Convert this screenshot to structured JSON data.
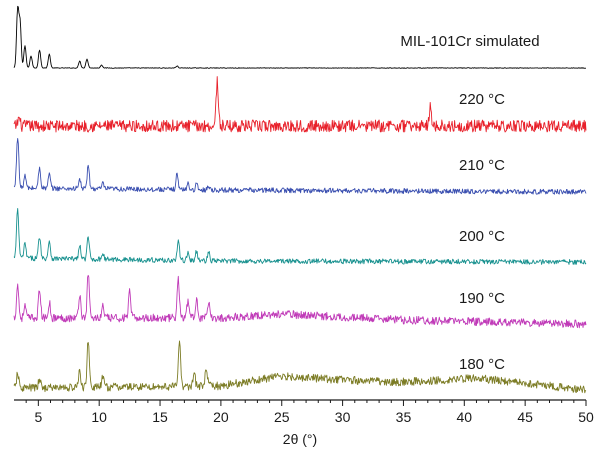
{
  "chart_data": {
    "type": "line",
    "title": "",
    "xlabel": "2θ (°)",
    "ylabel": "",
    "xlim": [
      3,
      50
    ],
    "xticks": [
      5,
      10,
      15,
      20,
      25,
      30,
      35,
      40,
      45,
      50
    ],
    "grid": false,
    "series": [
      {
        "name": "MIL-101Cr simulated",
        "color": "#000000",
        "noise": 0.3,
        "baseline_drift": [],
        "peaks": [
          [
            3.3,
            58
          ],
          [
            3.5,
            45
          ],
          [
            3.9,
            22
          ],
          [
            4.4,
            12
          ],
          [
            5.1,
            18
          ],
          [
            5.9,
            14
          ],
          [
            8.4,
            7
          ],
          [
            9.0,
            9
          ],
          [
            10.2,
            3
          ],
          [
            16.4,
            2
          ]
        ]
      },
      {
        "name": "220 °C",
        "color": "#e8202a",
        "noise": 6,
        "baseline_drift": [],
        "peaks": [
          [
            3.4,
            8
          ],
          [
            19.7,
            45
          ],
          [
            37.2,
            20
          ]
        ]
      },
      {
        "name": "210 °C",
        "color": "#3a4fb0",
        "noise": 2.5,
        "baseline_drift": [
          [
            3,
            4
          ],
          [
            20,
            2
          ],
          [
            50,
            0
          ]
        ],
        "peaks": [
          [
            3.3,
            52
          ],
          [
            3.9,
            12
          ],
          [
            5.1,
            20
          ],
          [
            5.9,
            14
          ],
          [
            8.4,
            9
          ],
          [
            9.1,
            22
          ],
          [
            10.3,
            5
          ],
          [
            16.4,
            16
          ],
          [
            17.3,
            6
          ],
          [
            18.0,
            5
          ],
          [
            19.0,
            4
          ]
        ]
      },
      {
        "name": "200 °C",
        "color": "#18918f",
        "noise": 2.5,
        "baseline_drift": [
          [
            3,
            4
          ],
          [
            20,
            1
          ],
          [
            50,
            0
          ]
        ],
        "peaks": [
          [
            3.3,
            48
          ],
          [
            3.9,
            14
          ],
          [
            5.1,
            22
          ],
          [
            5.9,
            18
          ],
          [
            8.4,
            13
          ],
          [
            9.1,
            22
          ],
          [
            10.3,
            6
          ],
          [
            16.5,
            20
          ],
          [
            17.3,
            8
          ],
          [
            18.0,
            9
          ],
          [
            19.0,
            8
          ]
        ]
      },
      {
        "name": "190 °C",
        "color": "#c03ab8",
        "noise": 4,
        "baseline_drift": [
          [
            3,
            6
          ],
          [
            20,
            6
          ],
          [
            25,
            10
          ],
          [
            35,
            4
          ],
          [
            50,
            0
          ]
        ],
        "peaks": [
          [
            3.3,
            33
          ],
          [
            3.9,
            12
          ],
          [
            5.1,
            28
          ],
          [
            5.9,
            16
          ],
          [
            8.4,
            24
          ],
          [
            9.1,
            44
          ],
          [
            10.3,
            12
          ],
          [
            12.5,
            26
          ],
          [
            16.5,
            40
          ],
          [
            17.3,
            18
          ],
          [
            18.0,
            20
          ],
          [
            19.0,
            14
          ]
        ]
      },
      {
        "name": "180 °C",
        "color": "#7c7c25",
        "noise": 4,
        "baseline_drift": [
          [
            3,
            2
          ],
          [
            20,
            4
          ],
          [
            25,
            14
          ],
          [
            30,
            10
          ],
          [
            35,
            8
          ],
          [
            41,
            12
          ],
          [
            50,
            0
          ]
        ],
        "peaks": [
          [
            3.3,
            14
          ],
          [
            5.1,
            8
          ],
          [
            8.4,
            16
          ],
          [
            9.1,
            48
          ],
          [
            10.3,
            10
          ],
          [
            16.6,
            46
          ],
          [
            17.8,
            14
          ],
          [
            18.8,
            18
          ]
        ]
      }
    ]
  }
}
